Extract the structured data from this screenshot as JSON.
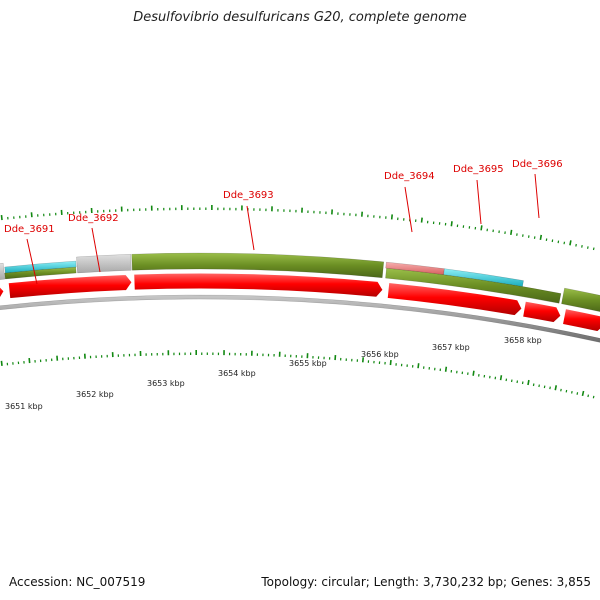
{
  "title": "Desulfovibrio desulfuricans G20, complete genome",
  "accession": "Accession: NC_007519",
  "topology": "Topology: circular; Length: 3,730,232 bp; Genes: 3,855",
  "gene_labels": [
    "Dde_3691",
    "Dde_3692",
    "Dde_3693",
    "Dde_3694",
    "Dde_3695",
    "Dde_3696"
  ],
  "kbp_labels": [
    "3651 kbp",
    "3652 kbp",
    "3653 kbp",
    "3654 kbp",
    "3655 kbp",
    "3656 kbp",
    "3657 kbp",
    "3658 kbp"
  ],
  "colors": {
    "gene_label": "#dd0000",
    "cds_arrow": "#ff0000",
    "olive_band": "#6b8e23",
    "gray_band": "#bdbdbd",
    "cyan_band": "#22c4d4",
    "pink_band": "#e88080",
    "tick": "#118811",
    "backbone": "#888888"
  }
}
